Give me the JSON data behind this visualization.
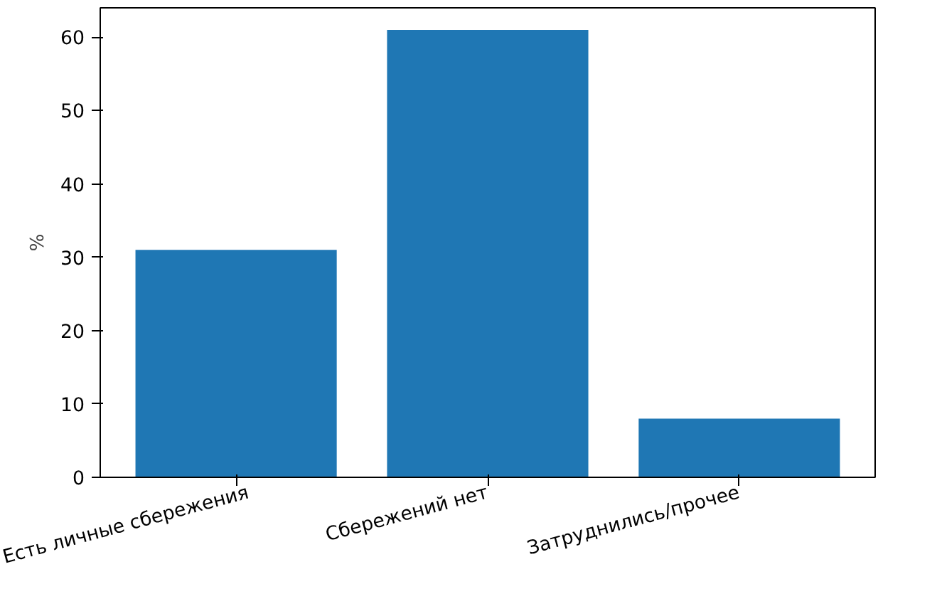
{
  "chart_data": {
    "type": "bar",
    "ylabel": "%",
    "categories": [
      "Есть личные сбережения",
      "Сбережений нет",
      "Затруднились/прочее"
    ],
    "values": [
      31,
      61,
      8
    ],
    "color": "#1f77b4",
    "ylim": [
      0,
      64
    ],
    "yticks": [
      0,
      10,
      20,
      30,
      40,
      50,
      60
    ],
    "grid": false
  }
}
